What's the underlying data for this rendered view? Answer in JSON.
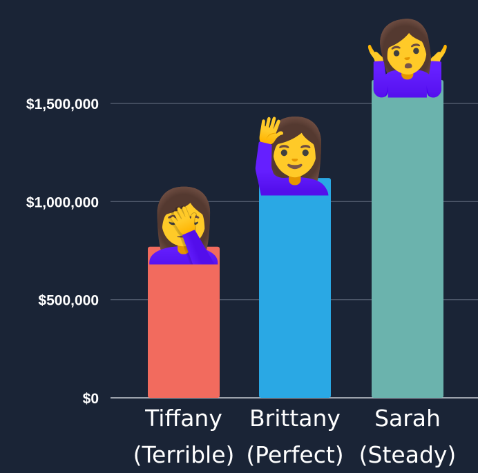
{
  "chart_data": {
    "type": "bar",
    "categories": [
      "Tiffany (Terrible)",
      "Brittany (Perfect)",
      "Sarah (Steady)"
    ],
    "category_lines": [
      [
        "Tiffany",
        "(Terrible)"
      ],
      [
        "Brittany",
        "(Perfect)"
      ],
      [
        "Sarah",
        "(Steady)"
      ]
    ],
    "values": [
      770000,
      1120000,
      1620000
    ],
    "colors": [
      "#f26b5e",
      "#2aa8e4",
      "#6bb3ad"
    ],
    "bar_icons": [
      "person-facepalming-icon",
      "person-raising-hand-icon",
      "person-shrugging-icon"
    ],
    "bar_emoji": [
      "🤦‍♀️",
      "🙋‍♀️",
      "🤷‍♀️"
    ],
    "ylim": [
      0,
      1800000
    ],
    "yticks": [
      0,
      500000,
      1000000,
      1500000
    ],
    "ytick_labels": [
      "$0",
      "$500,000",
      "$1,000,000",
      "$1,500,000"
    ],
    "grid": true,
    "title": "",
    "xlabel": "",
    "ylabel": ""
  }
}
